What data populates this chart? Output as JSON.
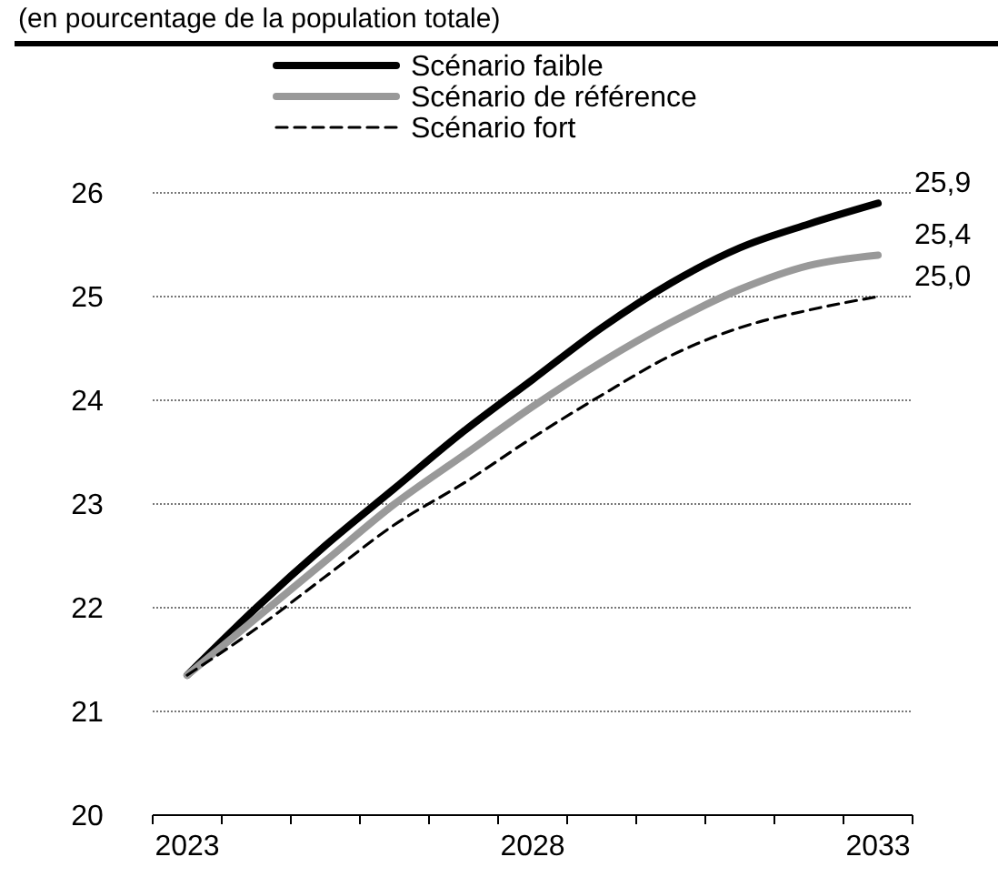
{
  "chart_data": {
    "type": "line",
    "subtitle": "(en pourcentage de la population totale)",
    "categories": [
      "2023",
      null,
      null,
      null,
      null,
      "2028",
      null,
      null,
      null,
      null,
      "2033"
    ],
    "ylim": [
      20,
      26
    ],
    "yticks": [
      20,
      21,
      22,
      23,
      24,
      25,
      26
    ],
    "grid": "y",
    "legend": "top",
    "marker": "none",
    "series": [
      {
        "name": "Scénario faible",
        "color": "#000000",
        "line_style": "solid",
        "values": [
          21.35,
          22.0,
          22.6,
          23.15,
          23.7,
          24.2,
          24.7,
          25.13,
          25.47,
          25.7,
          25.9
        ]
      },
      {
        "name": "Scénario de référence",
        "color": "#999999",
        "line_style": "solid",
        "values": [
          21.35,
          21.9,
          22.45,
          23.0,
          23.47,
          23.94,
          24.37,
          24.75,
          25.07,
          25.3,
          25.4
        ]
      },
      {
        "name": "Scénario fort",
        "color": "#000000",
        "line_style": "dashed",
        "values": [
          21.35,
          21.8,
          22.3,
          22.8,
          23.2,
          23.64,
          24.05,
          24.43,
          24.7,
          24.87,
          25.0
        ]
      }
    ],
    "annotations": [
      {
        "text": "25,9",
        "x": "2033",
        "y": 25.9
      },
      {
        "text": "25,4",
        "x": "2033",
        "y": 25.4
      },
      {
        "text": "25,0",
        "x": "2033",
        "y": 25.0
      }
    ]
  }
}
